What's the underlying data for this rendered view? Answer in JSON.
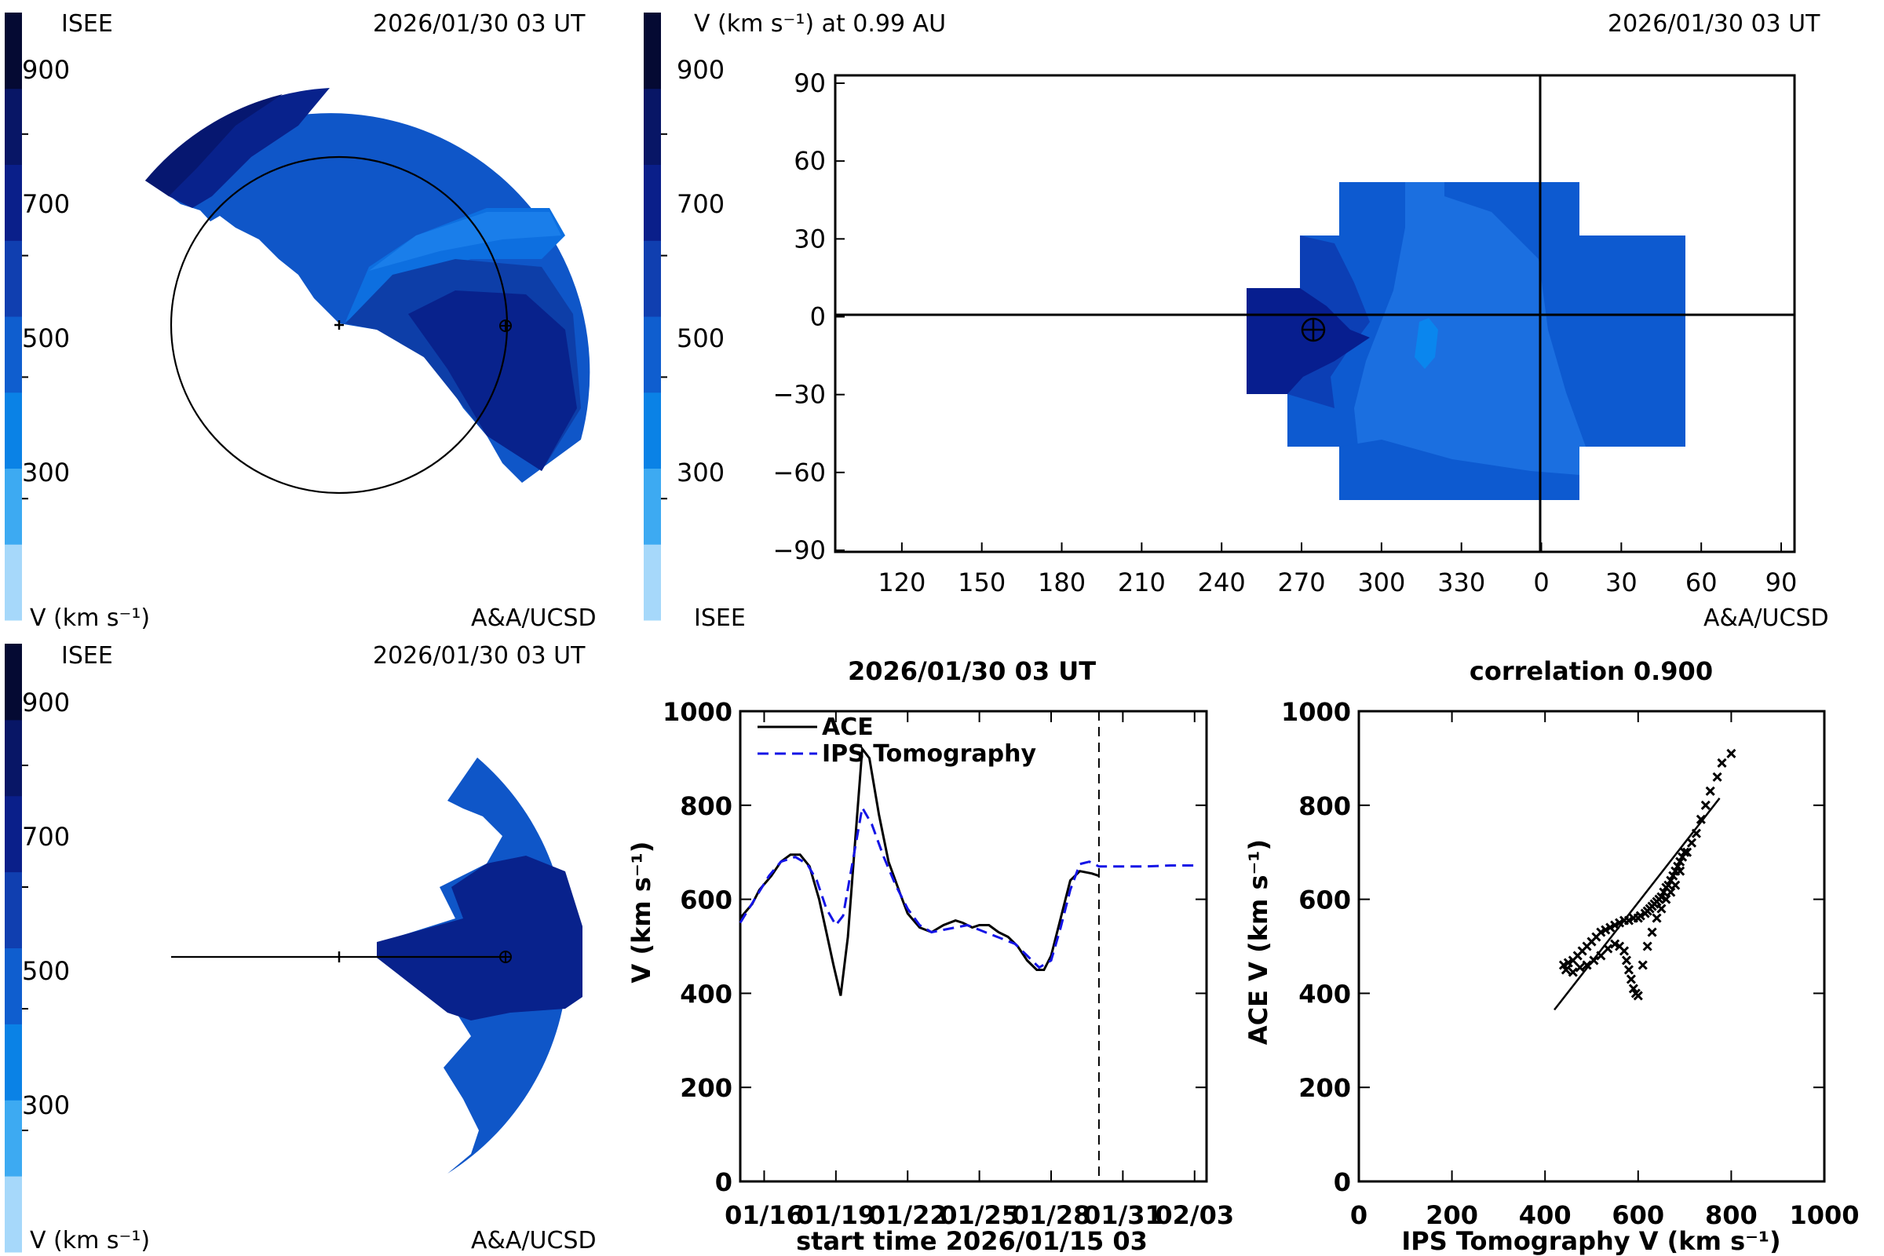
{
  "colors": {
    "scale": [
      "#a6d8fa",
      "#3daaf2",
      "#0a82e6",
      "#0f5ecf",
      "#103fb0",
      "#0a1f8a",
      "#081666",
      "#050a33"
    ],
    "polar_fill": [
      "#0d6fe0",
      "#0f56c8",
      "#0d3ea8",
      "#08228c",
      "#061770"
    ],
    "map_fill": [
      "#1b6fe0",
      "#0a86ee",
      "#0d5ad0",
      "#0c3fb5",
      "#071e8f"
    ]
  },
  "colorbar_ticks": [
    "900",
    "700",
    "500",
    "300"
  ],
  "top_left": {
    "label_left": "ISEE",
    "timestamp": "2026/01/30 03 UT",
    "unit_label": "V (km s⁻¹)",
    "credit": "A&A/UCSD"
  },
  "top_right": {
    "title": "V (km s⁻¹) at 0.99 AU",
    "timestamp": "2026/01/30 03 UT",
    "label_left": "ISEE",
    "credit": "A&A/UCSD",
    "x_ticks": [
      "120",
      "150",
      "180",
      "210",
      "240",
      "270",
      "300",
      "330",
      "0",
      "30",
      "60",
      "90"
    ],
    "y_ticks": [
      "90",
      "60",
      "30",
      "0",
      "−30",
      "−60",
      "−90"
    ]
  },
  "bottom_left": {
    "label_left": "ISEE",
    "timestamp": "2026/01/30 03 UT",
    "unit_label": "V (km s⁻¹)",
    "credit": "A&A/UCSD"
  },
  "chart_data": [
    {
      "type": "line",
      "title": "2026/01/30 03 UT",
      "xlabel": "start time 2026/01/15 03",
      "ylabel": "V (km s⁻¹)",
      "ylim": [
        0,
        1000
      ],
      "xlim_days": [
        0.5,
        19.5
      ],
      "x_ticks": [
        {
          "day": 1,
          "label": "01/16"
        },
        {
          "day": 4,
          "label": "01/19"
        },
        {
          "day": 7,
          "label": "01/22"
        },
        {
          "day": 10,
          "label": "01/25"
        },
        {
          "day": 13,
          "label": "01/28"
        },
        {
          "day": 16,
          "label": "01/31"
        },
        {
          "day": 19,
          "label": "02/03"
        }
      ],
      "y_ticks": [
        "0",
        "200",
        "400",
        "600",
        "800",
        "1000"
      ],
      "vline_day": 15.0,
      "legend": "top-left",
      "series": [
        {
          "name": "ACE",
          "style": "solid",
          "color": "#000000",
          "points": [
            [
              0,
              560
            ],
            [
              0.5,
              590
            ],
            [
              0.8,
              620
            ],
            [
              1.3,
              650
            ],
            [
              1.7,
              680
            ],
            [
              2.1,
              695
            ],
            [
              2.5,
              695
            ],
            [
              2.9,
              670
            ],
            [
              3.3,
              600
            ],
            [
              3.6,
              530
            ],
            [
              3.9,
              460
            ],
            [
              4.2,
              395
            ],
            [
              4.5,
              520
            ],
            [
              4.8,
              720
            ],
            [
              5.1,
              920
            ],
            [
              5.4,
              900
            ],
            [
              5.8,
              780
            ],
            [
              6.2,
              680
            ],
            [
              6.7,
              610
            ],
            [
              7.0,
              570
            ],
            [
              7.5,
              540
            ],
            [
              8.0,
              530
            ],
            [
              8.5,
              545
            ],
            [
              9.0,
              555
            ],
            [
              9.3,
              550
            ],
            [
              9.7,
              540
            ],
            [
              10.0,
              545
            ],
            [
              10.4,
              545
            ],
            [
              10.8,
              530
            ],
            [
              11.2,
              520
            ],
            [
              11.6,
              500
            ],
            [
              12.0,
              470
            ],
            [
              12.4,
              450
            ],
            [
              12.7,
              450
            ],
            [
              13.0,
              480
            ],
            [
              13.4,
              560
            ],
            [
              13.8,
              640
            ],
            [
              14.2,
              660
            ],
            [
              14.7,
              655
            ],
            [
              15.0,
              650
            ]
          ]
        },
        {
          "name": "IPS Tomography",
          "style": "dashed",
          "color": "#1414e6",
          "points": [
            [
              0,
              550
            ],
            [
              0.6,
              600
            ],
            [
              1.2,
              650
            ],
            [
              1.7,
              680
            ],
            [
              2.3,
              690
            ],
            [
              2.8,
              675
            ],
            [
              3.2,
              640
            ],
            [
              3.6,
              580
            ],
            [
              4.0,
              545
            ],
            [
              4.3,
              565
            ],
            [
              4.7,
              680
            ],
            [
              5.1,
              795
            ],
            [
              5.5,
              760
            ],
            [
              6.0,
              690
            ],
            [
              6.5,
              630
            ],
            [
              7.0,
              580
            ],
            [
              7.5,
              545
            ],
            [
              8.0,
              530
            ],
            [
              8.5,
              535
            ],
            [
              9.0,
              540
            ],
            [
              9.5,
              545
            ],
            [
              10.0,
              535
            ],
            [
              10.5,
              525
            ],
            [
              11.0,
              515
            ],
            [
              11.5,
              505
            ],
            [
              12.0,
              480
            ],
            [
              12.5,
              455
            ],
            [
              13.0,
              470
            ],
            [
              13.4,
              540
            ],
            [
              13.8,
              620
            ],
            [
              14.2,
              675
            ],
            [
              14.6,
              680
            ],
            [
              15.0,
              670
            ],
            [
              16.0,
              670
            ],
            [
              17.0,
              670
            ],
            [
              18.0,
              672
            ],
            [
              19.0,
              672
            ]
          ]
        }
      ]
    },
    {
      "type": "scatter",
      "title": "correlation 0.900",
      "xlabel": "IPS Tomography V (km s⁻¹)",
      "ylabel": "ACE V (km s⁻¹)",
      "xlim": [
        0,
        1000
      ],
      "ylim": [
        0,
        1000
      ],
      "x_ticks": [
        "0",
        "200",
        "400",
        "600",
        "800",
        "1000"
      ],
      "y_ticks": [
        "0",
        "200",
        "400",
        "600",
        "800",
        "1000"
      ],
      "fit_line": [
        [
          420,
          365
        ],
        [
          775,
          815
        ]
      ],
      "points": [
        [
          800,
          910
        ],
        [
          780,
          890
        ],
        [
          770,
          860
        ],
        [
          755,
          830
        ],
        [
          745,
          800
        ],
        [
          735,
          770
        ],
        [
          725,
          740
        ],
        [
          715,
          720
        ],
        [
          705,
          700
        ],
        [
          695,
          690
        ],
        [
          690,
          680
        ],
        [
          685,
          670
        ],
        [
          680,
          660
        ],
        [
          675,
          650
        ],
        [
          670,
          640
        ],
        [
          665,
          630
        ],
        [
          660,
          625
        ],
        [
          655,
          615
        ],
        [
          650,
          605
        ],
        [
          645,
          600
        ],
        [
          640,
          595
        ],
        [
          635,
          590
        ],
        [
          630,
          585
        ],
        [
          625,
          580
        ],
        [
          620,
          575
        ],
        [
          615,
          570
        ],
        [
          605,
          565
        ],
        [
          600,
          560
        ],
        [
          590,
          560
        ],
        [
          580,
          555
        ],
        [
          570,
          555
        ],
        [
          560,
          550
        ],
        [
          550,
          545
        ],
        [
          540,
          540
        ],
        [
          530,
          535
        ],
        [
          520,
          530
        ],
        [
          510,
          520
        ],
        [
          500,
          510
        ],
        [
          490,
          500
        ],
        [
          480,
          490
        ],
        [
          470,
          480
        ],
        [
          460,
          470
        ],
        [
          450,
          465
        ],
        [
          440,
          460
        ],
        [
          445,
          450
        ],
        [
          460,
          445
        ],
        [
          475,
          455
        ],
        [
          490,
          460
        ],
        [
          505,
          470
        ],
        [
          520,
          480
        ],
        [
          535,
          495
        ],
        [
          550,
          505
        ],
        [
          560,
          500
        ],
        [
          570,
          490
        ],
        [
          575,
          470
        ],
        [
          580,
          450
        ],
        [
          585,
          430
        ],
        [
          590,
          410
        ],
        [
          595,
          400
        ],
        [
          600,
          395
        ],
        [
          610,
          460
        ],
        [
          620,
          500
        ],
        [
          630,
          530
        ],
        [
          640,
          560
        ],
        [
          650,
          580
        ],
        [
          660,
          600
        ],
        [
          670,
          615
        ],
        [
          680,
          630
        ],
        [
          690,
          660
        ],
        [
          700,
          700
        ]
      ]
    }
  ]
}
